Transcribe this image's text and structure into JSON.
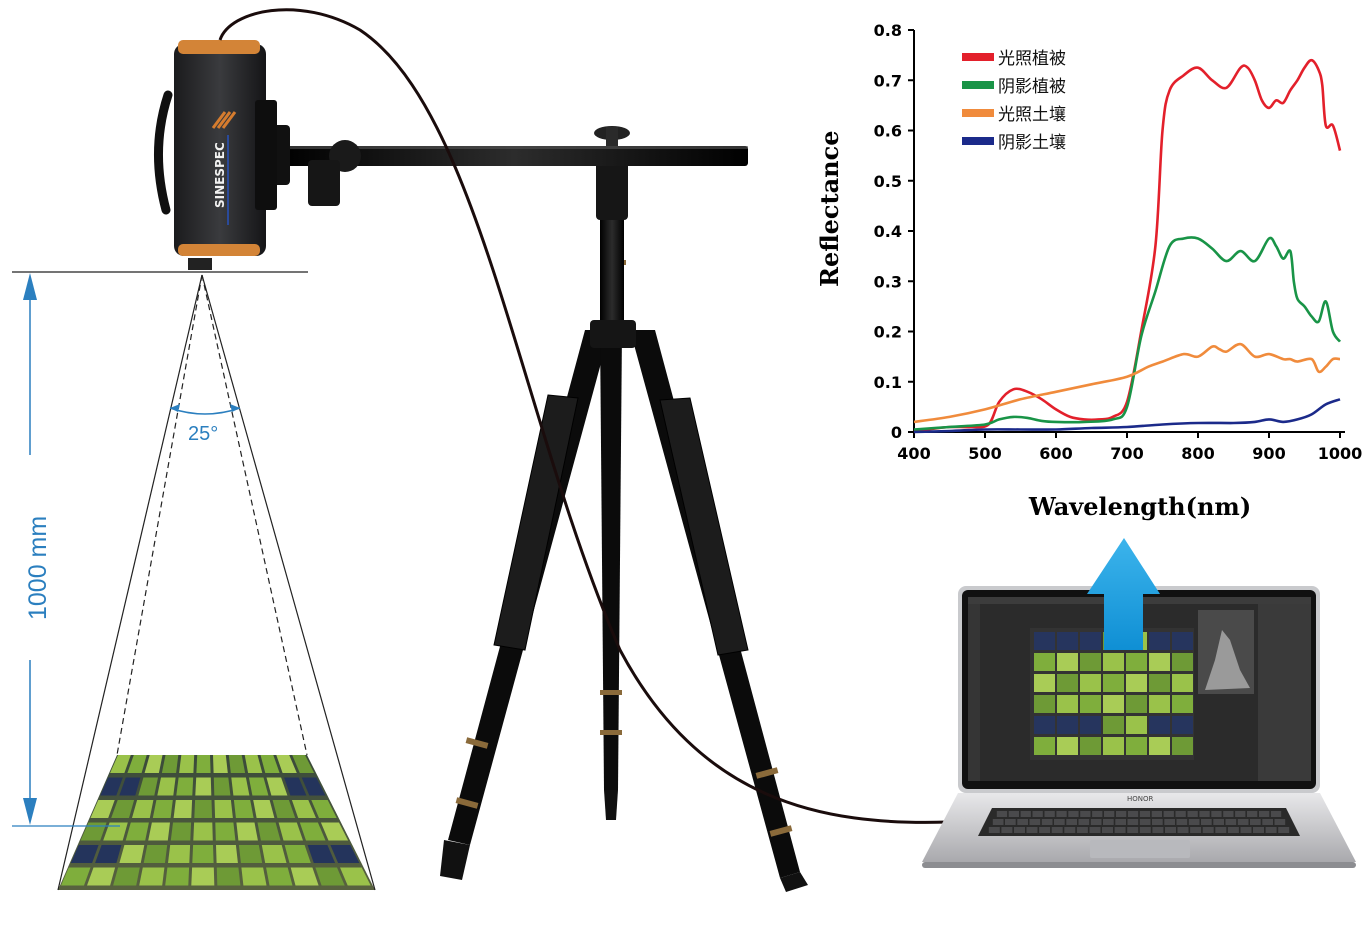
{
  "setup": {
    "camera_brand": "SINESPEC",
    "laptop_brand": "HONOR",
    "distance_label": "1000 mm",
    "angle_label": "25°"
  },
  "chart_data": {
    "type": "line",
    "xlabel": "Wavelength(nm)",
    "ylabel": "Reflectance",
    "xlim": [
      400,
      1000
    ],
    "ylim": [
      0,
      0.8
    ],
    "x_ticks": [
      "400",
      "500",
      "600",
      "700",
      "800",
      "900",
      "1000"
    ],
    "y_ticks": [
      "0",
      "0.1",
      "0.2",
      "0.3",
      "0.4",
      "0.5",
      "0.6",
      "0.7",
      "0.8"
    ],
    "grid": false,
    "legend_position": "top-left",
    "series": [
      {
        "name": "光照植被",
        "color": "#e3202b",
        "x": [
          400,
          420,
          450,
          480,
          505,
          520,
          540,
          560,
          580,
          600,
          620,
          640,
          660,
          680,
          700,
          720,
          740,
          750,
          760,
          780,
          800,
          820,
          840,
          860,
          870,
          880,
          890,
          900,
          910,
          920,
          930,
          940,
          950,
          960,
          970,
          975,
          980,
          990,
          1000
        ],
        "y": [
          0,
          0.005,
          0.01,
          0.01,
          0.015,
          0.06,
          0.085,
          0.08,
          0.065,
          0.045,
          0.03,
          0.025,
          0.025,
          0.03,
          0.06,
          0.2,
          0.37,
          0.6,
          0.68,
          0.71,
          0.725,
          0.7,
          0.685,
          0.725,
          0.725,
          0.7,
          0.66,
          0.645,
          0.66,
          0.655,
          0.68,
          0.7,
          0.725,
          0.74,
          0.72,
          0.69,
          0.61,
          0.61,
          0.56
        ]
      },
      {
        "name": "阴影植被",
        "color": "#199447",
        "x": [
          400,
          450,
          500,
          520,
          540,
          560,
          580,
          600,
          640,
          680,
          700,
          720,
          740,
          760,
          780,
          800,
          820,
          840,
          860,
          880,
          900,
          910,
          920,
          930,
          935,
          940,
          950,
          960,
          970,
          980,
          990,
          1000
        ],
        "y": [
          0.005,
          0.01,
          0.015,
          0.025,
          0.03,
          0.028,
          0.022,
          0.02,
          0.02,
          0.025,
          0.05,
          0.19,
          0.28,
          0.37,
          0.385,
          0.385,
          0.365,
          0.34,
          0.36,
          0.34,
          0.385,
          0.37,
          0.345,
          0.36,
          0.3,
          0.265,
          0.25,
          0.23,
          0.22,
          0.26,
          0.2,
          0.18
        ]
      },
      {
        "name": "光照土壤",
        "color": "#f08b3c",
        "x": [
          400,
          450,
          500,
          550,
          600,
          650,
          700,
          730,
          750,
          780,
          800,
          820,
          830,
          840,
          860,
          880,
          900,
          920,
          930,
          940,
          960,
          970,
          980,
          990,
          1000
        ],
        "y": [
          0.02,
          0.03,
          0.045,
          0.065,
          0.08,
          0.095,
          0.11,
          0.13,
          0.14,
          0.155,
          0.15,
          0.17,
          0.165,
          0.16,
          0.175,
          0.15,
          0.155,
          0.145,
          0.145,
          0.14,
          0.145,
          0.12,
          0.13,
          0.145,
          0.145
        ]
      },
      {
        "name": "阴影土壤",
        "color": "#1b2a8a",
        "x": [
          400,
          450,
          500,
          550,
          600,
          650,
          700,
          750,
          800,
          850,
          880,
          900,
          920,
          940,
          960,
          980,
          1000
        ],
        "y": [
          0,
          0.002,
          0.005,
          0.005,
          0.005,
          0.008,
          0.01,
          0.015,
          0.018,
          0.018,
          0.02,
          0.025,
          0.02,
          0.025,
          0.035,
          0.055,
          0.065
        ]
      }
    ]
  }
}
